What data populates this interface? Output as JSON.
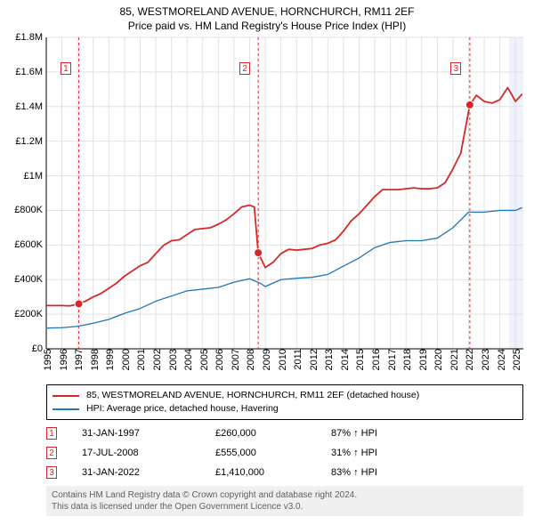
{
  "title_main": "85, WESTMORELAND AVENUE, HORNCHURCH, RM11 2EF",
  "title_sub": "Price paid vs. HM Land Registry's House Price Index (HPI)",
  "chart": {
    "type": "line",
    "background_color": "#ffffff",
    "plot_bg": "#ffffff",
    "x": {
      "min": 1995,
      "max": 2025.5,
      "ticks": [
        1995,
        1996,
        1997,
        1998,
        1999,
        2000,
        2001,
        2002,
        2003,
        2004,
        2005,
        2006,
        2007,
        2008,
        2009,
        2010,
        2011,
        2012,
        2013,
        2014,
        2015,
        2016,
        2017,
        2018,
        2019,
        2020,
        2021,
        2022,
        2023,
        2024,
        2025
      ],
      "tick_rotation": -90,
      "label_fontsize": 11
    },
    "y": {
      "min": 0,
      "max": 1800000,
      "ticks": [
        0,
        200000,
        400000,
        600000,
        800000,
        1000000,
        1200000,
        1400000,
        1600000,
        1800000
      ],
      "tick_labels": [
        "£0",
        "£200K",
        "£400K",
        "£600K",
        "£800K",
        "£1M",
        "£1.2M",
        "£1.4M",
        "£1.6M",
        "£1.8M"
      ],
      "label_fontsize": 11
    },
    "grid_color": "#e1e1e1",
    "axis_color": "#000000",
    "future_band": {
      "from": 2024.6,
      "to": 2025.5,
      "fill": "#eef2fa"
    },
    "series": [
      {
        "name": "85, WESTMORELAND AVENUE, HORNCHURCH, RM11 2EF (detached house)",
        "color": "#d62728",
        "line_width": 1.8,
        "points": [
          [
            1995.0,
            250000
          ],
          [
            1996.0,
            250000
          ],
          [
            1996.5,
            248000
          ],
          [
            1997.08,
            260000
          ],
          [
            1997.5,
            275000
          ],
          [
            1998.0,
            300000
          ],
          [
            1998.5,
            320000
          ],
          [
            1999.0,
            350000
          ],
          [
            1999.5,
            380000
          ],
          [
            2000.0,
            420000
          ],
          [
            2000.5,
            450000
          ],
          [
            2001.0,
            480000
          ],
          [
            2001.5,
            500000
          ],
          [
            2002.0,
            550000
          ],
          [
            2002.5,
            598000
          ],
          [
            2003.0,
            625000
          ],
          [
            2003.5,
            630000
          ],
          [
            2004.0,
            660000
          ],
          [
            2004.5,
            690000
          ],
          [
            2005.0,
            695000
          ],
          [
            2005.5,
            700000
          ],
          [
            2006.0,
            720000
          ],
          [
            2006.5,
            745000
          ],
          [
            2007.0,
            780000
          ],
          [
            2007.5,
            820000
          ],
          [
            2008.0,
            830000
          ],
          [
            2008.3,
            820000
          ],
          [
            2008.55,
            555000
          ],
          [
            2009.0,
            470000
          ],
          [
            2009.5,
            500000
          ],
          [
            2010.0,
            550000
          ],
          [
            2010.5,
            575000
          ],
          [
            2011.0,
            570000
          ],
          [
            2011.5,
            575000
          ],
          [
            2012.0,
            580000
          ],
          [
            2012.5,
            600000
          ],
          [
            2013.0,
            610000
          ],
          [
            2013.5,
            630000
          ],
          [
            2014.0,
            680000
          ],
          [
            2014.5,
            740000
          ],
          [
            2015.0,
            780000
          ],
          [
            2015.5,
            830000
          ],
          [
            2016.0,
            880000
          ],
          [
            2016.5,
            920000
          ],
          [
            2017.0,
            920000
          ],
          [
            2017.5,
            920000
          ],
          [
            2018.0,
            925000
          ],
          [
            2018.5,
            930000
          ],
          [
            2019.0,
            925000
          ],
          [
            2019.5,
            925000
          ],
          [
            2020.0,
            930000
          ],
          [
            2020.5,
            960000
          ],
          [
            2021.0,
            1040000
          ],
          [
            2021.5,
            1130000
          ],
          [
            2022.08,
            1410000
          ],
          [
            2022.5,
            1465000
          ],
          [
            2023.0,
            1430000
          ],
          [
            2023.5,
            1420000
          ],
          [
            2024.0,
            1440000
          ],
          [
            2024.5,
            1510000
          ],
          [
            2025.0,
            1430000
          ],
          [
            2025.4,
            1470000
          ]
        ]
      },
      {
        "name": "HPI: Average price, detached house, Havering",
        "color": "#1f77b4",
        "line_width": 1.3,
        "points": [
          [
            1995.0,
            120000
          ],
          [
            1996.0,
            122000
          ],
          [
            1997.0,
            130000
          ],
          [
            1998.0,
            148000
          ],
          [
            1999.0,
            170000
          ],
          [
            2000.0,
            205000
          ],
          [
            2001.0,
            233000
          ],
          [
            2002.0,
            275000
          ],
          [
            2003.0,
            305000
          ],
          [
            2004.0,
            335000
          ],
          [
            2005.0,
            345000
          ],
          [
            2006.0,
            355000
          ],
          [
            2007.0,
            385000
          ],
          [
            2008.0,
            405000
          ],
          [
            2008.7,
            378000
          ],
          [
            2009.0,
            360000
          ],
          [
            2010.0,
            400000
          ],
          [
            2011.0,
            408000
          ],
          [
            2012.0,
            413000
          ],
          [
            2013.0,
            430000
          ],
          [
            2014.0,
            478000
          ],
          [
            2015.0,
            525000
          ],
          [
            2016.0,
            585000
          ],
          [
            2017.0,
            615000
          ],
          [
            2018.0,
            625000
          ],
          [
            2019.0,
            625000
          ],
          [
            2020.0,
            640000
          ],
          [
            2021.0,
            700000
          ],
          [
            2022.0,
            790000
          ],
          [
            2023.0,
            790000
          ],
          [
            2024.0,
            800000
          ],
          [
            2025.0,
            800000
          ],
          [
            2025.4,
            815000
          ]
        ]
      }
    ],
    "transaction_markers": [
      {
        "n": "1",
        "x": 1997.08,
        "y": 260000,
        "label_x": 1996.25,
        "label_y": 1620000
      },
      {
        "n": "2",
        "x": 2008.55,
        "y": 555000,
        "label_x": 2007.7,
        "label_y": 1620000
      },
      {
        "n": "3",
        "x": 2022.08,
        "y": 1410000,
        "label_x": 2021.2,
        "label_y": 1620000
      }
    ],
    "marker_line_color": "#d62728",
    "marker_line_dash": "3,3",
    "marker_fill": "#d62728"
  },
  "legend": [
    {
      "color": "#d62728",
      "label": "85, WESTMORELAND AVENUE, HORNCHURCH, RM11 2EF (detached house)"
    },
    {
      "color": "#1f77b4",
      "label": "HPI: Average price, detached house, Havering"
    }
  ],
  "transactions": [
    {
      "n": "1",
      "date": "31-JAN-1997",
      "price": "£260,000",
      "rel": "87% ↑ HPI"
    },
    {
      "n": "2",
      "date": "17-JUL-2008",
      "price": "£555,000",
      "rel": "31% ↑ HPI"
    },
    {
      "n": "3",
      "date": "31-JAN-2022",
      "price": "£1,410,000",
      "rel": "83% ↑ HPI"
    }
  ],
  "footer_line1": "Contains HM Land Registry data © Crown copyright and database right 2024.",
  "footer_line2": "This data is licensed under the Open Government Licence v3.0."
}
